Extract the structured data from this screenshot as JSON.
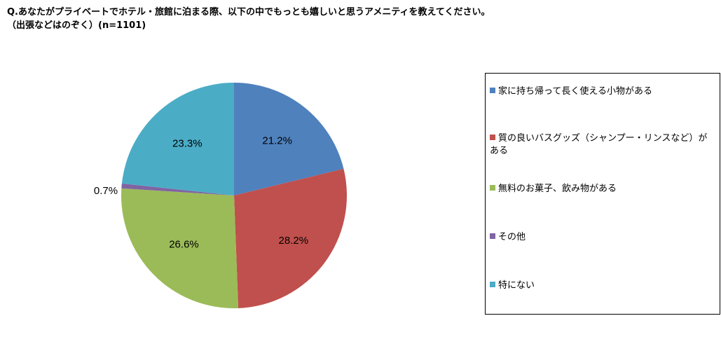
{
  "title": {
    "line1": "Q.あなたがプライベートでホテル・旅館に泊まる際、以下の中でもっとも嬉しいと思うアメニティを教えてください。",
    "line2": "（出張などはのぞく）(n=1101)"
  },
  "chart_data": {
    "type": "pie",
    "start_angle_deg": 90,
    "direction": "clockwise",
    "legend_position": "right",
    "slices": [
      {
        "label": "家に持ち帰って長く使える小物がある",
        "value": 21.2,
        "display": "21.2%",
        "color": "#4F81BD"
      },
      {
        "label": "質の良いバスグッズ（シャンプー・リンスなど）がある",
        "value": 28.2,
        "display": "28.2%",
        "color": "#C0504D"
      },
      {
        "label": "無料のお菓子、飲み物がある",
        "value": 26.6,
        "display": "26.6%",
        "color": "#9BBB59"
      },
      {
        "label": "その他",
        "value": 0.7,
        "display": "0.7%",
        "color": "#8064A2"
      },
      {
        "label": "特にない",
        "value": 23.3,
        "display": "23.3%",
        "color": "#4BACC6"
      }
    ]
  }
}
